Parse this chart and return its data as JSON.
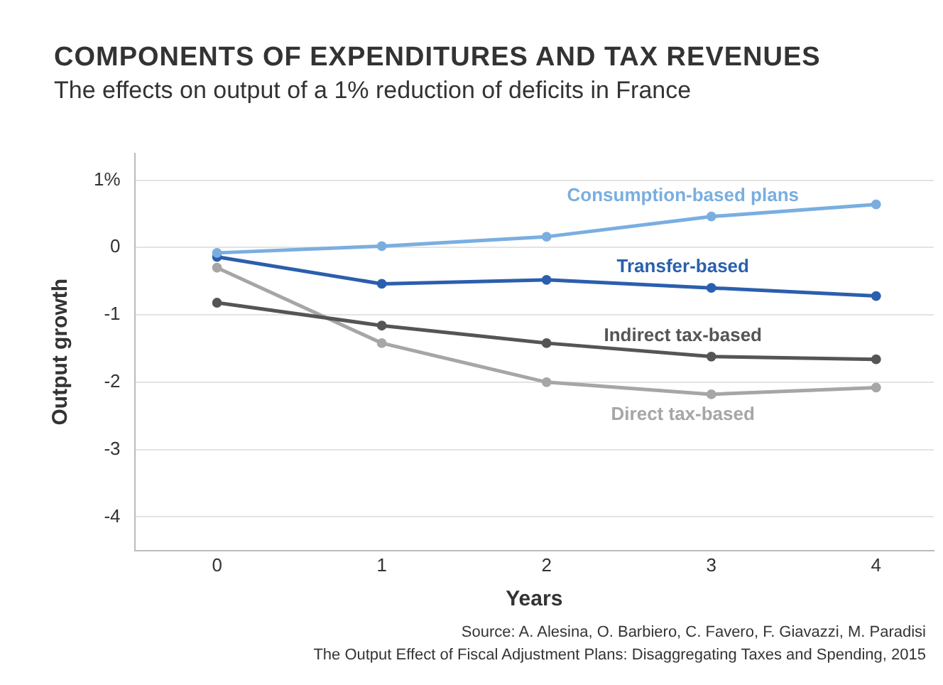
{
  "chart_data": {
    "type": "line",
    "title": "COMPONENTS OF EXPENDITURES AND TAX REVENUES",
    "subtitle": "The effects on output of a 1% reduction of deficits in France",
    "xlabel": "Years",
    "ylabel": "Output growth",
    "x": [
      0,
      1,
      2,
      3,
      4
    ],
    "series": [
      {
        "name": "Consumption-based plans",
        "color": "#7aaee0",
        "values": [
          -0.08,
          0.02,
          0.16,
          0.46,
          0.64
        ]
      },
      {
        "name": "Transfer-based",
        "color": "#2b5fad",
        "values": [
          -0.14,
          -0.54,
          -0.48,
          -0.6,
          -0.72
        ]
      },
      {
        "name": "Indirect tax-based",
        "color": "#555555",
        "values": [
          -0.82,
          -1.16,
          -1.42,
          -1.62,
          -1.66
        ]
      },
      {
        "name": "Direct tax-based",
        "color": "#a6a6a6",
        "values": [
          -0.3,
          -1.42,
          -2.0,
          -2.18,
          -2.08
        ]
      }
    ],
    "xlim": [
      -0.5,
      4.35
    ],
    "xticks": [
      0,
      1,
      2,
      3,
      4
    ],
    "ylim": [
      -4.5,
      1.4
    ],
    "yticks": [
      {
        "value": 1,
        "label": "1%"
      },
      0,
      -1,
      -2,
      -3,
      -4
    ],
    "grid": "y",
    "legend": false,
    "marker": "circle",
    "line_style": "solid",
    "annotations": [
      "Source: A. Alesina, O. Barbiero, C. Favero, F. Giavazzi, M. Paradisi",
      "The Output Effect of Fiscal Adjustment Plans: Disaggregating Taxes and Spending, 2015"
    ]
  }
}
